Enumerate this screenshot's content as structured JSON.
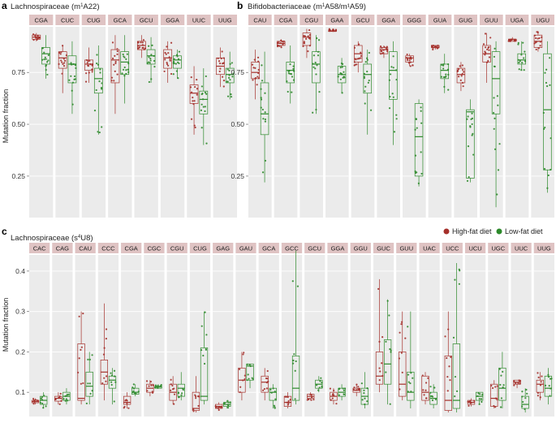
{
  "colors": {
    "high_fat": "#a5302b",
    "low_fat": "#2d8a2b",
    "strip": "#dfc3c3",
    "panel_bg": "#ebebeb",
    "grid": "#ffffff"
  },
  "legend": {
    "high_fat_label": "High-fat diet",
    "low_fat_label": "Low-fat diet"
  },
  "y_axis_label": "Mutation fraction",
  "chart_data": [
    {
      "panel": "a",
      "type": "box",
      "title_prefix": "Lachnospiraceae (m",
      "title_sup": "1",
      "title_suffix": "A22)",
      "ylim": [
        0.05,
        0.97
      ],
      "yticks": [
        0.25,
        0.5,
        0.75
      ],
      "ytick_labels": [
        "0.25",
        "0.50",
        "0.75"
      ],
      "categories": [
        "CGA",
        "CUC",
        "CUG",
        "GCA",
        "GCU",
        "GGA",
        "UUC",
        "UUG"
      ],
      "series": [
        {
          "name": "High-fat diet",
          "boxes": [
            [
              0.9,
              0.91,
              0.92,
              0.93,
              0.94
            ],
            [
              0.65,
              0.77,
              0.82,
              0.85,
              0.88
            ],
            [
              0.7,
              0.76,
              0.79,
              0.81,
              0.87
            ],
            [
              0.55,
              0.7,
              0.81,
              0.86,
              0.93
            ],
            [
              0.82,
              0.86,
              0.88,
              0.9,
              0.93
            ],
            [
              0.7,
              0.77,
              0.82,
              0.86,
              0.9
            ],
            [
              0.45,
              0.6,
              0.65,
              0.69,
              0.78
            ],
            [
              0.68,
              0.74,
              0.78,
              0.82,
              0.87
            ]
          ]
        },
        {
          "name": "Low-fat diet",
          "boxes": [
            [
              0.72,
              0.79,
              0.84,
              0.87,
              0.93
            ],
            [
              0.55,
              0.7,
              0.79,
              0.83,
              0.9
            ],
            [
              0.45,
              0.65,
              0.72,
              0.77,
              0.88
            ],
            [
              0.6,
              0.74,
              0.8,
              0.85,
              0.93
            ],
            [
              0.7,
              0.79,
              0.83,
              0.86,
              0.92
            ],
            [
              0.72,
              0.77,
              0.81,
              0.83,
              0.86
            ],
            [
              0.4,
              0.55,
              0.62,
              0.66,
              0.77
            ],
            [
              0.62,
              0.7,
              0.74,
              0.77,
              0.85
            ]
          ]
        }
      ]
    },
    {
      "panel": "b",
      "type": "box",
      "title_prefix": "Bifidobacteriaceae (m",
      "title_sup": "1",
      "title_suffix": "A58/m¹A59)",
      "ylim": [
        0.05,
        0.97
      ],
      "yticks": [
        0.25,
        0.5,
        0.75
      ],
      "ytick_labels": [
        "0.25",
        "0.50",
        "0.75"
      ],
      "categories": [
        "CAU",
        "CGA",
        "CGU",
        "GAA",
        "GCU",
        "GGA",
        "GGG",
        "GUA",
        "GUG",
        "GUU",
        "UGA",
        "UGU"
      ],
      "series": [
        {
          "name": "High-fat diet",
          "boxes": [
            [
              0.62,
              0.72,
              0.75,
              0.8,
              0.86
            ],
            [
              0.87,
              0.88,
              0.89,
              0.9,
              0.91
            ],
            [
              0.82,
              0.88,
              0.92,
              0.94,
              0.96
            ],
            [
              0.95,
              0.95,
              0.95,
              0.95,
              0.96
            ],
            [
              0.75,
              0.8,
              0.84,
              0.88,
              0.9
            ],
            [
              0.82,
              0.84,
              0.86,
              0.87,
              0.88
            ],
            [
              0.78,
              0.8,
              0.82,
              0.83,
              0.84
            ],
            [
              0.86,
              0.87,
              0.87,
              0.88,
              0.88
            ],
            [
              0.66,
              0.7,
              0.74,
              0.77,
              0.8
            ],
            [
              0.7,
              0.8,
              0.84,
              0.88,
              0.94
            ],
            [
              0.9,
              0.9,
              0.91,
              0.91,
              0.92
            ],
            [
              0.85,
              0.87,
              0.9,
              0.93,
              0.95
            ]
          ]
        },
        {
          "name": "Low-fat diet",
          "boxes": [
            [
              0.22,
              0.45,
              0.55,
              0.7,
              0.85
            ],
            [
              0.6,
              0.7,
              0.76,
              0.8,
              0.88
            ],
            [
              0.55,
              0.7,
              0.79,
              0.85,
              0.93
            ],
            [
              0.65,
              0.7,
              0.74,
              0.78,
              0.82
            ],
            [
              0.45,
              0.65,
              0.74,
              0.79,
              0.86
            ],
            [
              0.4,
              0.62,
              0.76,
              0.85,
              0.9
            ],
            [
              0.2,
              0.25,
              0.44,
              0.6,
              0.62
            ],
            [
              0.65,
              0.72,
              0.76,
              0.79,
              0.84
            ],
            [
              0.22,
              0.24,
              0.56,
              0.57,
              0.62
            ],
            [
              0.1,
              0.55,
              0.72,
              0.85,
              0.9
            ],
            [
              0.76,
              0.79,
              0.81,
              0.84,
              0.9
            ],
            [
              0.17,
              0.28,
              0.57,
              0.84,
              0.9
            ]
          ]
        }
      ]
    },
    {
      "panel": "c",
      "type": "box",
      "title_prefix": "Lachnospiraceae (s",
      "title_sup": "4",
      "title_suffix": "U8)",
      "ylim": [
        0.04,
        0.44
      ],
      "yticks": [
        0.1,
        0.2,
        0.3,
        0.4
      ],
      "ytick_labels": [
        "0.1",
        "0.2",
        "0.3",
        "0.4"
      ],
      "categories": [
        "CAC",
        "CAG",
        "CAU",
        "CCC",
        "CGA",
        "CGC",
        "CGU",
        "CUG",
        "GAG",
        "GAU",
        "GCA",
        "GCC",
        "GCU",
        "GGA",
        "GGU",
        "GUC",
        "GUU",
        "UAC",
        "UCC",
        "UCU",
        "UGC",
        "UUC",
        "UUG"
      ],
      "series": [
        {
          "name": "High-fat diet",
          "boxes": [
            [
              0.07,
              0.074,
              0.077,
              0.08,
              0.085
            ],
            [
              0.07,
              0.078,
              0.085,
              0.09,
              0.1
            ],
            [
              0.07,
              0.08,
              0.085,
              0.22,
              0.3
            ],
            [
              0.08,
              0.12,
              0.15,
              0.18,
              0.32
            ],
            [
              0.06,
              0.07,
              0.075,
              0.09,
              0.1
            ],
            [
              0.09,
              0.1,
              0.11,
              0.12,
              0.13
            ],
            [
              0.07,
              0.08,
              0.1,
              0.12,
              0.14
            ],
            [
              0.05,
              0.055,
              0.06,
              0.1,
              0.14
            ],
            [
              0.055,
              0.06,
              0.065,
              0.07,
              0.075
            ],
            [
              0.08,
              0.1,
              0.13,
              0.16,
              0.2
            ],
            [
              0.08,
              0.1,
              0.125,
              0.14,
              0.16
            ],
            [
              0.06,
              0.065,
              0.075,
              0.09,
              0.1
            ],
            [
              0.08,
              0.085,
              0.09,
              0.095,
              0.1
            ],
            [
              0.07,
              0.08,
              0.09,
              0.1,
              0.11
            ],
            [
              0.09,
              0.1,
              0.105,
              0.11,
              0.12
            ],
            [
              0.1,
              0.12,
              0.14,
              0.2,
              0.38
            ],
            [
              0.08,
              0.09,
              0.12,
              0.2,
              0.3
            ],
            [
              0.07,
              0.08,
              0.1,
              0.14,
              0.15
            ],
            [
              0.05,
              0.055,
              0.08,
              0.19,
              0.3
            ],
            [
              0.065,
              0.07,
              0.075,
              0.08,
              0.085
            ],
            [
              0.06,
              0.065,
              0.085,
              0.12,
              0.13
            ],
            [
              0.11,
              0.12,
              0.125,
              0.13,
              0.13
            ],
            [
              0.08,
              0.1,
              0.12,
              0.13,
              0.15
            ]
          ]
        },
        {
          "name": "Low-fat diet",
          "boxes": [
            [
              0.06,
              0.07,
              0.08,
              0.09,
              0.1
            ],
            [
              0.07,
              0.08,
              0.09,
              0.1,
              0.11
            ],
            [
              0.07,
              0.09,
              0.115,
              0.15,
              0.2
            ],
            [
              0.07,
              0.11,
              0.13,
              0.14,
              0.16
            ],
            [
              0.09,
              0.095,
              0.1,
              0.11,
              0.12
            ],
            [
              0.11,
              0.11,
              0.113,
              0.115,
              0.12
            ],
            [
              0.08,
              0.09,
              0.11,
              0.12,
              0.15
            ],
            [
              0.07,
              0.08,
              0.09,
              0.21,
              0.3
            ],
            [
              0.06,
              0.065,
              0.07,
              0.075,
              0.08
            ],
            [
              0.11,
              0.13,
              0.165,
              0.17,
              0.17
            ],
            [
              0.06,
              0.08,
              0.1,
              0.11,
              0.12
            ],
            [
              0.07,
              0.08,
              0.11,
              0.19,
              0.45
            ],
            [
              0.1,
              0.11,
              0.12,
              0.13,
              0.14
            ],
            [
              0.08,
              0.09,
              0.1,
              0.11,
              0.12
            ],
            [
              0.06,
              0.07,
              0.09,
              0.11,
              0.15
            ],
            [
              0.07,
              0.12,
              0.17,
              0.23,
              0.33
            ],
            [
              0.06,
              0.08,
              0.1,
              0.15,
              0.3
            ],
            [
              0.06,
              0.07,
              0.085,
              0.1,
              0.12
            ],
            [
              0.05,
              0.06,
              0.08,
              0.22,
              0.42
            ],
            [
              0.07,
              0.08,
              0.09,
              0.1,
              0.1
            ],
            [
              0.06,
              0.08,
              0.11,
              0.16,
              0.2
            ],
            [
              0.05,
              0.06,
              0.07,
              0.09,
              0.11
            ],
            [
              0.07,
              0.09,
              0.11,
              0.14,
              0.16
            ]
          ]
        }
      ]
    }
  ]
}
